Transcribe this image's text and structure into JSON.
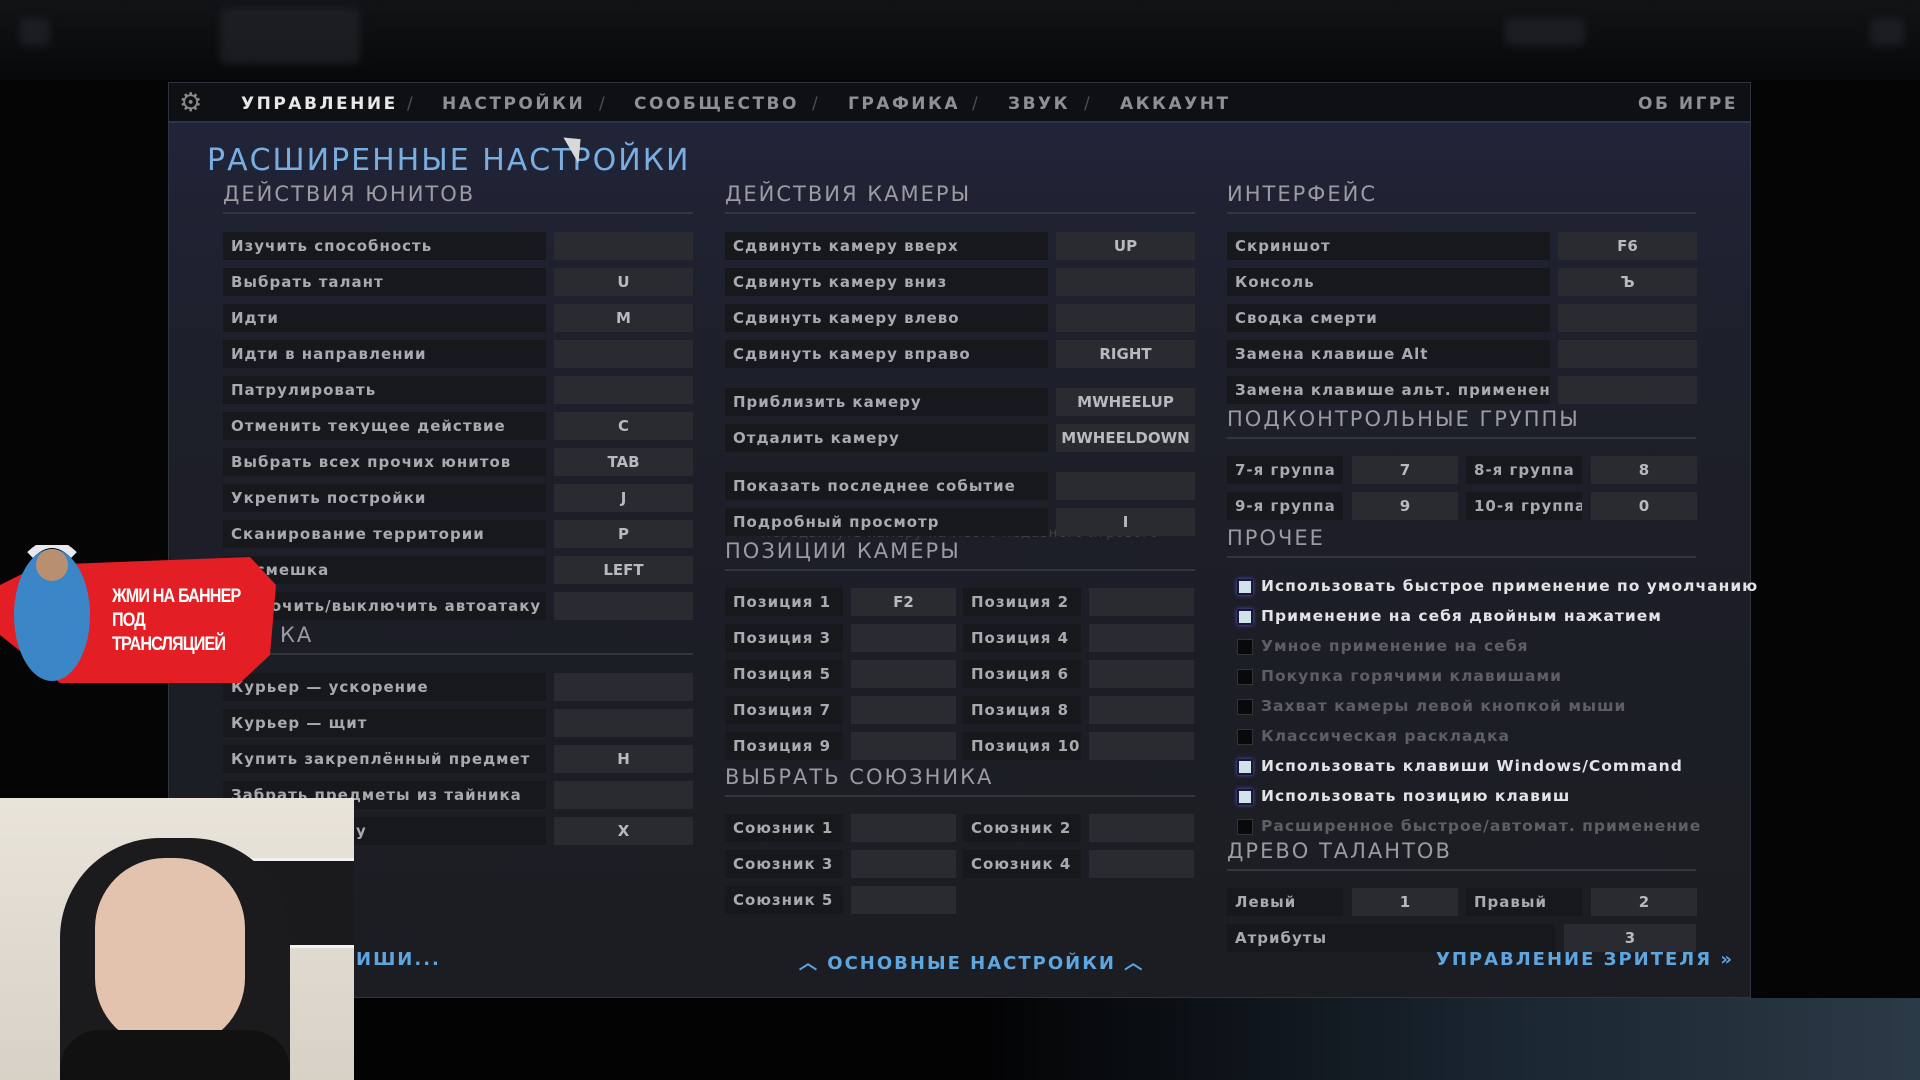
{
  "nav": {
    "items": [
      "УПРАВЛЕНИЕ",
      "НАСТРОЙКИ",
      "СООБЩЕСТВО",
      "ГРАФИКА",
      "ЗВУК",
      "АККАУНТ"
    ],
    "separator": "/",
    "about": "ОБ ИГРЕ",
    "active": 0
  },
  "title": "РАСШИРЕННЫЕ НАСТРОЙКИ",
  "unit_actions": {
    "header": "ДЕЙСТВИЯ ЮНИТОВ",
    "rows": [
      {
        "label": "Изучить способность",
        "key": ""
      },
      {
        "label": "Выбрать талант",
        "key": "U"
      },
      {
        "label": "Идти",
        "key": "M"
      },
      {
        "label": "Идти в направлении",
        "key": ""
      },
      {
        "label": "Патрулировать",
        "key": ""
      },
      {
        "label": "Отменить текущее действие",
        "key": "C"
      },
      {
        "label": "Выбрать всех прочих юнитов",
        "key": "TAB"
      },
      {
        "label": "Укрепить постройки",
        "key": "J"
      },
      {
        "label": "Сканирование территории",
        "key": "P"
      },
      {
        "label": "Насмешка",
        "key": "LEFT"
      },
      {
        "label": "Включить/выключить автоатаку",
        "key": ""
      }
    ]
  },
  "shop": {
    "header": "КА",
    "rows": [
      {
        "label": "Курьер — ускорение",
        "key": ""
      },
      {
        "label": "Курьер — щит",
        "key": ""
      },
      {
        "label": "Купить закреплённый предмет",
        "key": "H"
      },
      {
        "label": "Забрать предметы из тайника",
        "key": ""
      },
      {
        "label": "у",
        "key": "X"
      }
    ]
  },
  "hotkeys_link": "ИШИ...",
  "camera_actions": {
    "header": "ДЕЙСТВИЯ КАМЕРЫ",
    "rows": [
      {
        "label": "Сдвинуть камеру вверх",
        "key": "UP"
      },
      {
        "label": "Сдвинуть камеру вниз",
        "key": ""
      },
      {
        "label": "Сдвинуть камеру влево",
        "key": ""
      },
      {
        "label": "Сдвинуть камеру вправо",
        "key": "RIGHT"
      },
      {
        "label": "Приблизить камеру",
        "key": "MWHEELUP"
      },
      {
        "label": "Отдалить камеру",
        "key": "MWHEELDOWN"
      },
      {
        "label": "Показать последнее событие",
        "key": ""
      },
      {
        "label": "Подробный просмотр",
        "key": "I"
      }
    ],
    "tooltip": "Передвинуть камеру на место недавнего игрового"
  },
  "camera_positions": {
    "header": "ПОЗИЦИИ КАМЕРЫ",
    "rows": [
      [
        {
          "label": "Позиция 1",
          "key": "F2"
        },
        {
          "label": "Позиция 2",
          "key": ""
        }
      ],
      [
        {
          "label": "Позиция 3",
          "key": ""
        },
        {
          "label": "Позиция 4",
          "key": ""
        }
      ],
      [
        {
          "label": "Позиция 5",
          "key": ""
        },
        {
          "label": "Позиция 6",
          "key": ""
        }
      ],
      [
        {
          "label": "Позиция 7",
          "key": ""
        },
        {
          "label": "Позиция 8",
          "key": ""
        }
      ],
      [
        {
          "label": "Позиция 9",
          "key": ""
        },
        {
          "label": "Позиция 10",
          "key": ""
        }
      ]
    ]
  },
  "select_ally": {
    "header": "ВЫБРАТЬ СОЮЗНИКА",
    "rows": [
      [
        {
          "label": "Союзник 1",
          "key": ""
        },
        {
          "label": "Союзник 2",
          "key": ""
        }
      ],
      [
        {
          "label": "Союзник 3",
          "key": ""
        },
        {
          "label": "Союзник 4",
          "key": ""
        }
      ],
      [
        {
          "label": "Союзник 5",
          "key": ""
        }
      ]
    ]
  },
  "main_settings_link": "ОСНОВНЫЕ НАСТРОЙКИ",
  "interface": {
    "header": "ИНТЕРФЕЙС",
    "rows": [
      {
        "label": "Скриншот",
        "key": "F6"
      },
      {
        "label": "Консоль",
        "key": "Ъ"
      },
      {
        "label": "Сводка смерти",
        "key": ""
      },
      {
        "label": "Замена клавише Alt",
        "key": ""
      },
      {
        "label": "Замена клавише альт. применения",
        "key": ""
      }
    ]
  },
  "control_groups": {
    "header": "ПОДКОНТРОЛЬНЫЕ ГРУППЫ",
    "rows": [
      [
        {
          "label": "7-я группа",
          "key": "7"
        },
        {
          "label": "8-я группа",
          "key": "8"
        }
      ],
      [
        {
          "label": "9-я группа",
          "key": "9"
        },
        {
          "label": "10-я группа",
          "key": "0"
        }
      ]
    ]
  },
  "other": {
    "header": "ПРОЧЕЕ",
    "options": [
      {
        "label": "Использовать быстрое применение по умолчанию",
        "checked": true
      },
      {
        "label": "Применение на себя двойным нажатием",
        "checked": true
      },
      {
        "label": "Умное применение на себя",
        "checked": false
      },
      {
        "label": "Покупка горячими клавишами",
        "checked": false
      },
      {
        "label": "Захват камеры левой кнопкой мыши",
        "checked": false
      },
      {
        "label": "Классическая раскладка",
        "checked": false
      },
      {
        "label": "Использовать клавиши Windows/Command",
        "checked": true
      },
      {
        "label": "Использовать позицию клавиш",
        "checked": true
      },
      {
        "label": "Расширенное быстрое/автомат. применение",
        "checked": false
      }
    ]
  },
  "talent_tree": {
    "header": "ДРЕВО ТАЛАНТОВ",
    "rows": [
      [
        {
          "label": "Левый",
          "key": "1"
        },
        {
          "label": "Правый",
          "key": "2"
        }
      ]
    ],
    "attributes": {
      "label": "Атрибуты",
      "key": "3"
    }
  },
  "spectator_link": "УПРАВЛЕНИЕ ЗРИТЕЛЯ",
  "banner": {
    "line1": "ЖМИ НА БАННЕР",
    "line2": "ПОД ТРАНСЛЯЦИЕЙ"
  },
  "colors": {
    "accent": "#5ea6e0",
    "title": "#78aee0",
    "banner": "#e31e24"
  }
}
